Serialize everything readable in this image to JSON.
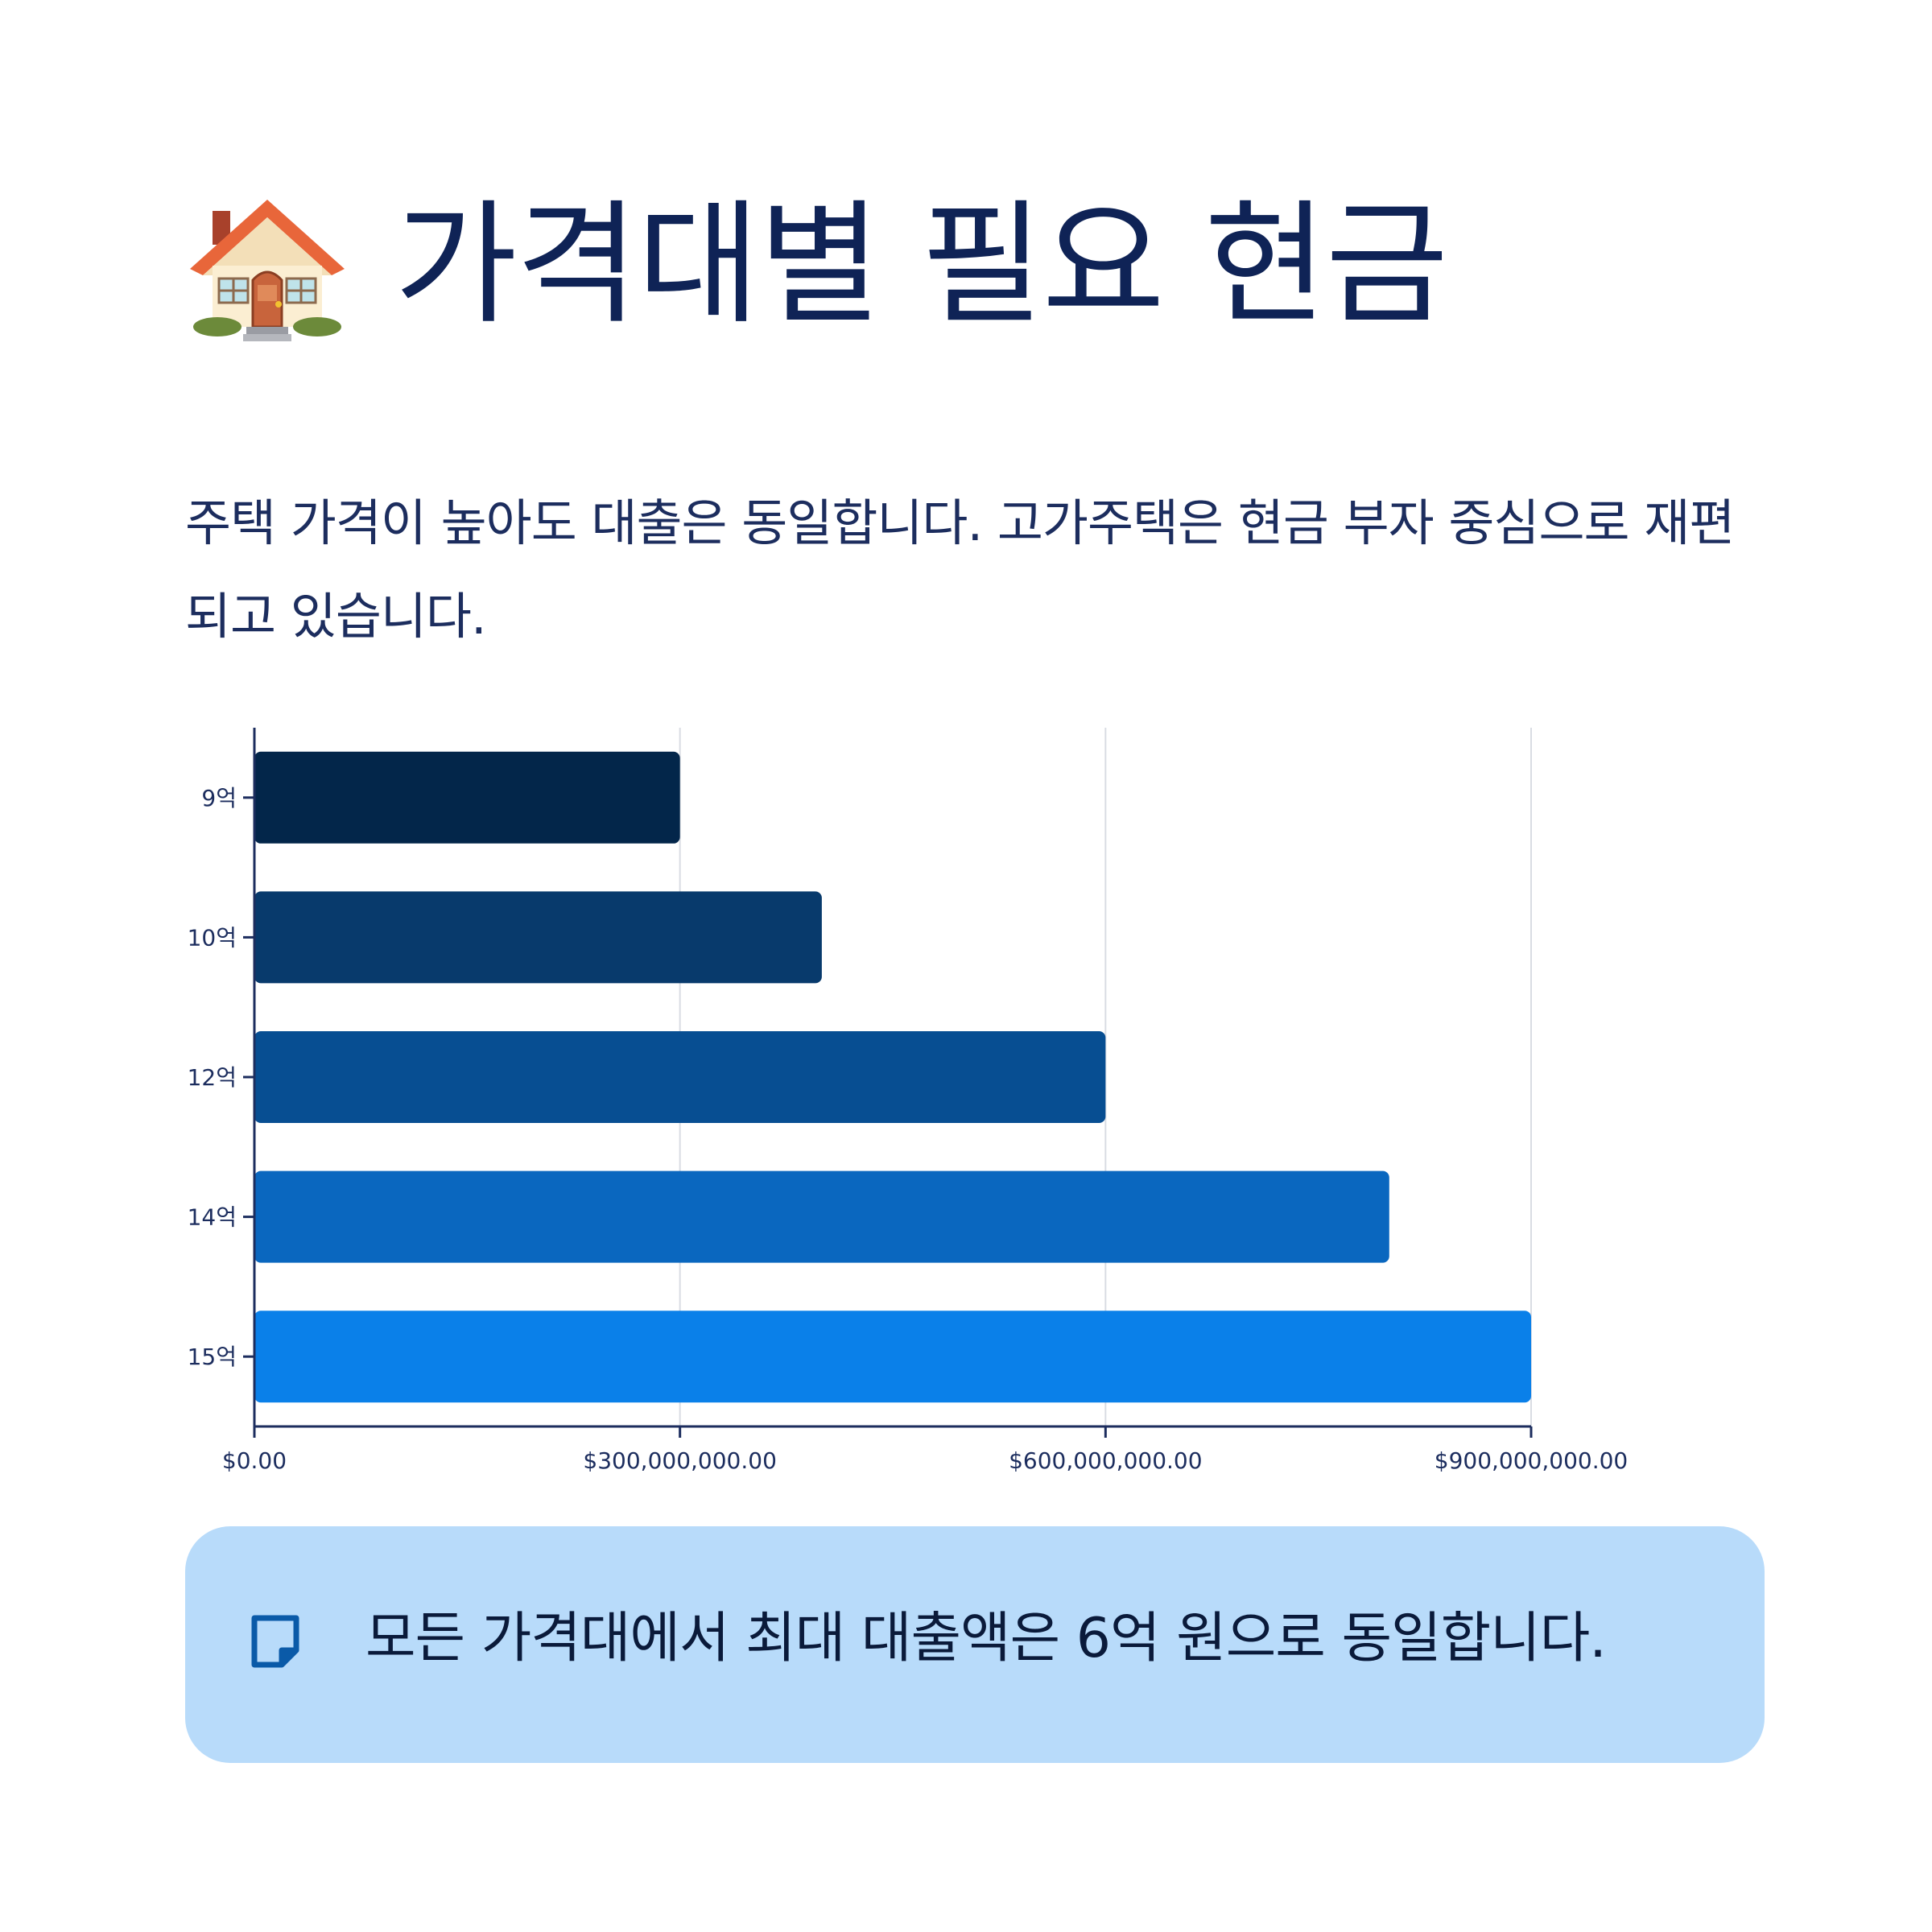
{
  "header": {
    "icon": "house-icon",
    "title": "가격대별 필요 현금"
  },
  "subtitle": "주택 가격이 높아도 대출은 동일합니다. 고가주택은 현금 부자 중심으로 재편되고 있습니다.",
  "chart_data": {
    "type": "bar",
    "orientation": "horizontal",
    "title": "",
    "xlabel": "",
    "ylabel": "",
    "categories": [
      "9억",
      "10억",
      "12억",
      "14억",
      "15억"
    ],
    "values": [
      300000000,
      400000000,
      600000000,
      800000000,
      900000000
    ],
    "xlim": [
      0,
      900000000
    ],
    "x_ticks": [
      0,
      300000000,
      600000000,
      900000000
    ],
    "x_tick_labels": [
      "$0.00",
      "$300,000,000.00",
      "$600,000,000.00",
      "$900,000,000.00"
    ],
    "grid": "vertical",
    "legend": "none",
    "colors": [
      "#03264a",
      "#083a6c",
      "#074e92",
      "#0a67bf",
      "#0a80e9"
    ]
  },
  "callout": {
    "icon": "note-icon",
    "text": "모든 가격대에서 최대 대출액은 6억 원으로 동일합니다."
  },
  "colors": {
    "title": "#0f2356",
    "callout_bg": "#b8dbfa",
    "axis": "#1c2d5e",
    "grid": "#d9dce3"
  }
}
